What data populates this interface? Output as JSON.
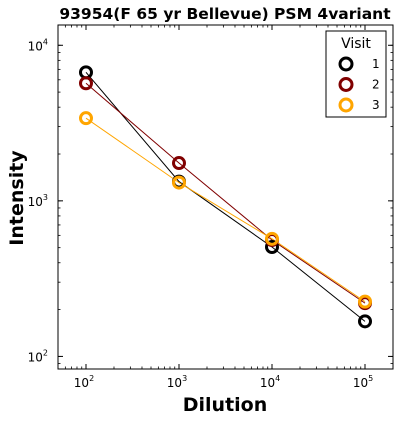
{
  "chart_data": {
    "type": "line",
    "title": "93954(F 65 yr Bellevue) PSM 4variant",
    "xlabel": "Dilution",
    "ylabel": "Intensity",
    "xscale": "log",
    "yscale": "log",
    "xlim": [
      50,
      200000
    ],
    "ylim": [
      83,
      13500
    ],
    "x": [
      100,
      1000,
      10000,
      100000
    ],
    "x_ticks": [
      {
        "value": 100,
        "base": "10",
        "exp": "2"
      },
      {
        "value": 1000,
        "base": "10",
        "exp": "3"
      },
      {
        "value": 10000,
        "base": "10",
        "exp": "4"
      },
      {
        "value": 100000,
        "base": "10",
        "exp": "5"
      }
    ],
    "y_ticks": [
      {
        "value": 100,
        "base": "10",
        "exp": "2"
      },
      {
        "value": 1000,
        "base": "10",
        "exp": "3"
      },
      {
        "value": 10000,
        "base": "10",
        "exp": "4"
      }
    ],
    "legend": {
      "title": "Visit",
      "position": "top-right"
    },
    "series": [
      {
        "name": "1",
        "color": "#000000",
        "values": [
          6700,
          1330,
          505,
          168
        ]
      },
      {
        "name": "2",
        "color": "#800000",
        "values": [
          5700,
          1750,
          560,
          220
        ]
      },
      {
        "name": "3",
        "color": "#ffa500",
        "values": [
          3400,
          1310,
          570,
          225
        ]
      }
    ]
  }
}
